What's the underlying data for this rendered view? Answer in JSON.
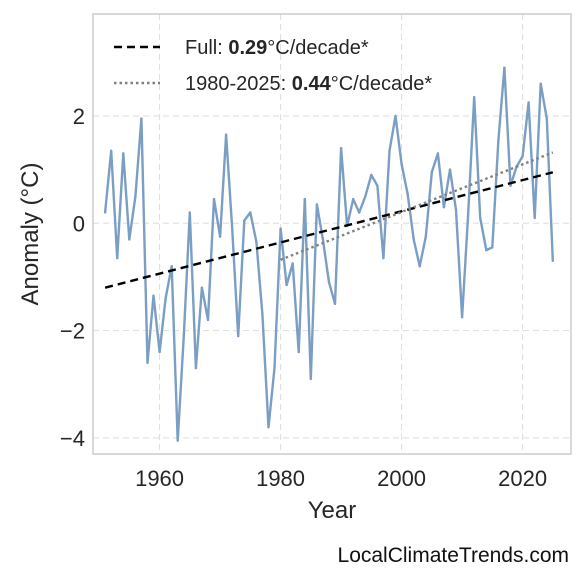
{
  "watermark": "LocalClimateTrends.com",
  "chart_data": {
    "type": "line",
    "xlabel": "Year",
    "ylabel": "Anomaly (°C)",
    "xlim": [
      1949,
      2028
    ],
    "ylim": [
      -4.3,
      3.9
    ],
    "xticks": [
      1960,
      1980,
      2000,
      2020
    ],
    "yticks": [
      -4,
      -2,
      0,
      2
    ],
    "grid": true,
    "legend_placement": "top-left",
    "series": [
      {
        "color": "#7b9ec4",
        "x": [
          1951,
          1952,
          1953,
          1954,
          1955,
          1956,
          1957,
          1958,
          1959,
          1960,
          1961,
          1962,
          1963,
          1964,
          1965,
          1966,
          1967,
          1968,
          1969,
          1970,
          1971,
          1972,
          1973,
          1974,
          1975,
          1976,
          1977,
          1978,
          1979,
          1980,
          1981,
          1982,
          1983,
          1984,
          1985,
          1986,
          1987,
          1988,
          1989,
          1990,
          1991,
          1992,
          1993,
          1994,
          1995,
          1996,
          1997,
          1998,
          1999,
          2000,
          2001,
          2002,
          2003,
          2004,
          2005,
          2006,
          2007,
          2008,
          2009,
          2010,
          2011,
          2012,
          2013,
          2014,
          2015,
          2016,
          2017,
          2018,
          2019,
          2020,
          2021,
          2022,
          2023,
          2024,
          2025
        ],
        "values": [
          0.2,
          1.35,
          -0.65,
          1.3,
          -0.3,
          0.5,
          1.95,
          -2.6,
          -1.35,
          -2.4,
          -1.4,
          -0.8,
          -4.05,
          -2.1,
          0.2,
          -2.7,
          -1.2,
          -1.8,
          0.45,
          -0.25,
          1.65,
          -0.1,
          -2.1,
          0.05,
          0.2,
          -0.35,
          -1.7,
          -3.8,
          -2.7,
          -0.1,
          -1.15,
          -0.75,
          -2.4,
          0.45,
          -2.9,
          0.35,
          -0.3,
          -1.1,
          -1.5,
          1.4,
          -0.05,
          0.45,
          0.2,
          0.5,
          0.9,
          0.7,
          -0.65,
          1.35,
          2.0,
          1.1,
          0.55,
          -0.3,
          -0.8,
          -0.25,
          0.95,
          1.3,
          0.3,
          1.0,
          0.25,
          -1.75,
          0.15,
          2.35,
          0.1,
          -0.5,
          -0.45,
          1.55,
          2.9,
          0.7,
          1.05,
          1.25,
          2.25,
          0.1,
          2.6,
          1.95,
          -0.7
        ]
      }
    ],
    "trends": [
      {
        "label_prefix": "Full: ",
        "label_value": "0.29",
        "label_suffix": "°C/decade*",
        "style": "dashed",
        "color": "#000000",
        "x": [
          1951,
          2025
        ],
        "y": [
          -1.2,
          0.95
        ]
      },
      {
        "label_prefix": "1980-2025: ",
        "label_value": "0.44",
        "label_suffix": "°C/decade*",
        "style": "dotted",
        "color": "#808080",
        "x": [
          1980,
          2025
        ],
        "y": [
          -0.68,
          1.32
        ]
      }
    ]
  }
}
